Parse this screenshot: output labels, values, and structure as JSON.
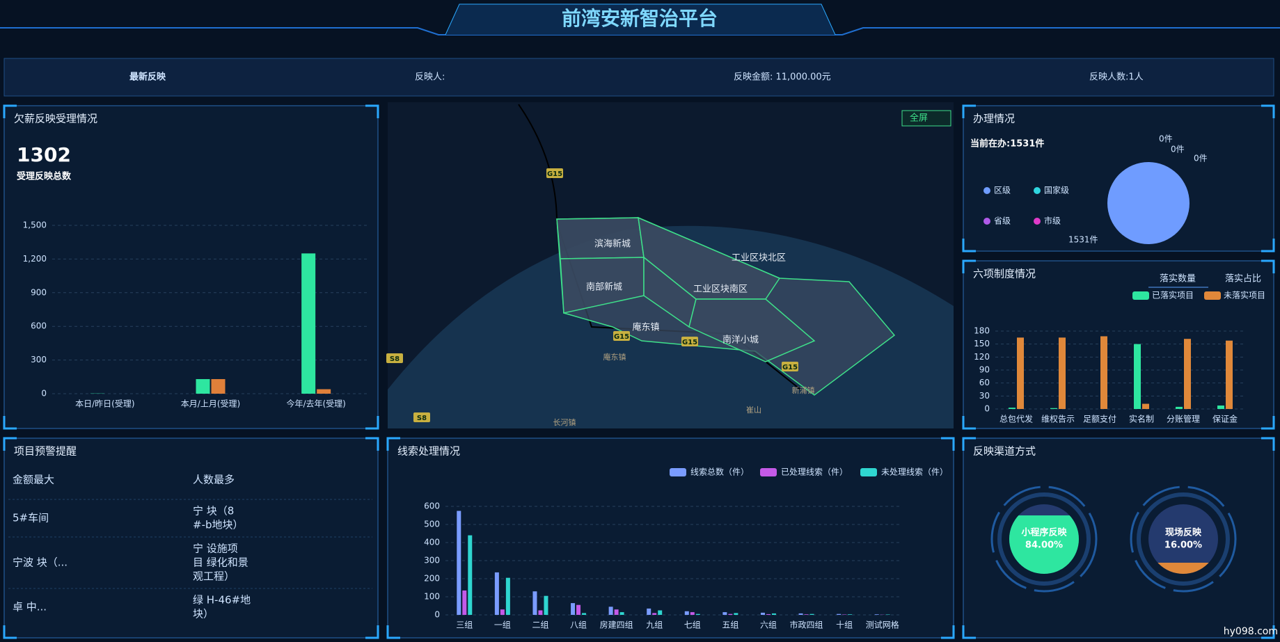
{
  "header": {
    "title": "前湾安新智治平台"
  },
  "ticker": {
    "label": "最新反映",
    "reporter": "反映人:",
    "amount": "反映金额: 11,000.00元",
    "count": "反映人数:1人"
  },
  "wage_panel": {
    "title": "欠薪反映受理情况",
    "total": "1302",
    "total_label": "受理反映总数",
    "chart": {
      "type": "bar",
      "categories": [
        "本日/昨日(受理)",
        "本月/上月(受理)",
        "今年/去年(受理)"
      ],
      "series": [
        {
          "color": "#2ee6a0",
          "values": [
            2,
            130,
            1250
          ]
        },
        {
          "color": "#e0803a",
          "values": [
            0,
            130,
            40
          ]
        }
      ],
      "ylim": [
        0,
        1500
      ],
      "yticks": [
        0,
        300,
        600,
        900,
        {
          "value": 1200,
          "label": "1,200"
        },
        {
          "value": 1500,
          "label": "1,500"
        }
      ]
    }
  },
  "map": {
    "fullscreen": "全屏",
    "areas": [
      "滨海新城",
      "工业区块北区",
      "南部新城",
      "工业区块南区",
      "庵东镇",
      "南洋小城"
    ],
    "roads": [
      "G15",
      "G15",
      "G15",
      "G15",
      "S8",
      "S8"
    ],
    "places": [
      "庵东镇",
      "新浦镇",
      "崔山",
      "长河镇"
    ]
  },
  "handling_panel": {
    "title": "办理情况",
    "current": "当前在办:1531件",
    "chart": {
      "type": "pie",
      "categories": [
        "区级",
        "国家级",
        "省级",
        "市级"
      ],
      "values": [
        1531,
        0,
        0,
        0
      ],
      "value_labels": [
        "1531件",
        "0件",
        "0件",
        "0件"
      ],
      "colors": [
        "#6f9cff",
        "#2fd6e0",
        "#b05ae8",
        "#e03ac8"
      ]
    }
  },
  "system_panel": {
    "title": "六项制度情况",
    "tabs": [
      "落实数量",
      "落实占比"
    ],
    "chart": {
      "type": "bar",
      "categories": [
        "总包代发",
        "维权告示",
        "足额支付",
        "实名制",
        "分账管理",
        "保证金"
      ],
      "series": [
        {
          "name": "已落实项目",
          "color": "#2ee6a0",
          "values": [
            3,
            2,
            0,
            150,
            5,
            8
          ]
        },
        {
          "name": "未落实项目",
          "color": "#e0883a",
          "values": [
            165,
            165,
            168,
            12,
            162,
            158
          ]
        }
      ],
      "ylim": [
        0,
        180
      ],
      "yticks": [
        0,
        30,
        60,
        90,
        120,
        150,
        180
      ]
    }
  },
  "warning_panel": {
    "title": "项目预警提醒",
    "table": {
      "header": [
        "金额最大",
        "人数最多"
      ],
      "rows": [
        [
          [
            "5#车间"
          ],
          [
            "宁 块（8",
            "#-b地块）"
          ]
        ],
        [
          [
            "宁波 块（..."
          ],
          [
            "宁 设施项",
            "目 绿化和景",
            "观工程）"
          ]
        ],
        [
          [
            "卓 中..."
          ],
          [
            "绿 H-46#地",
            "块）"
          ]
        ]
      ]
    }
  },
  "clue_panel": {
    "title": "线索处理情况",
    "chart": {
      "type": "bar",
      "categories": [
        "三组",
        "一组",
        "二组",
        "八组",
        "房建四组",
        "九组",
        "七组",
        "五组",
        "六组",
        "市政四组",
        "十组",
        "测试网格"
      ],
      "series": [
        {
          "name": "线索总数（件）",
          "color": "#7a9cff",
          "values": [
            575,
            235,
            130,
            65,
            45,
            35,
            20,
            15,
            12,
            8,
            5,
            3
          ]
        },
        {
          "name": "已处理线索（件）",
          "color": "#c45ae8",
          "values": [
            135,
            30,
            25,
            55,
            30,
            10,
            15,
            5,
            4,
            3,
            2,
            1
          ]
        },
        {
          "name": "未处理线索（件）",
          "color": "#2fd6d0",
          "values": [
            440,
            205,
            105,
            10,
            15,
            25,
            5,
            10,
            8,
            5,
            3,
            2
          ]
        }
      ],
      "ylim": [
        0,
        600
      ],
      "yticks": [
        0,
        100,
        200,
        300,
        400,
        500,
        600
      ]
    }
  },
  "channel_panel": {
    "title": "反映渠道方式",
    "chart": {
      "type": "gauge",
      "categories": [
        "小程序反映",
        "现场反映"
      ],
      "values": [
        84,
        16
      ],
      "value_labels": [
        "84.00%",
        "16.00%"
      ],
      "colors": [
        "#2ee6a0",
        "#e0883a"
      ]
    }
  },
  "watermark": "hy098.com"
}
